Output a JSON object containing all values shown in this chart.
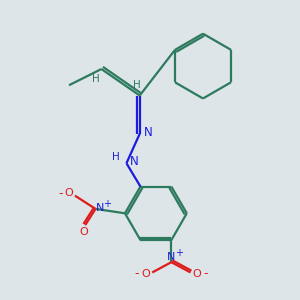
{
  "bg_color": "#dde5e8",
  "bond_color": "#2d7a5e",
  "n_color": "#1c1cdd",
  "o_color": "#dd1c1c",
  "figsize": [
    3.0,
    3.0
  ],
  "dpi": 100,
  "xlim": [
    0,
    10
  ],
  "ylim": [
    0,
    10
  ]
}
